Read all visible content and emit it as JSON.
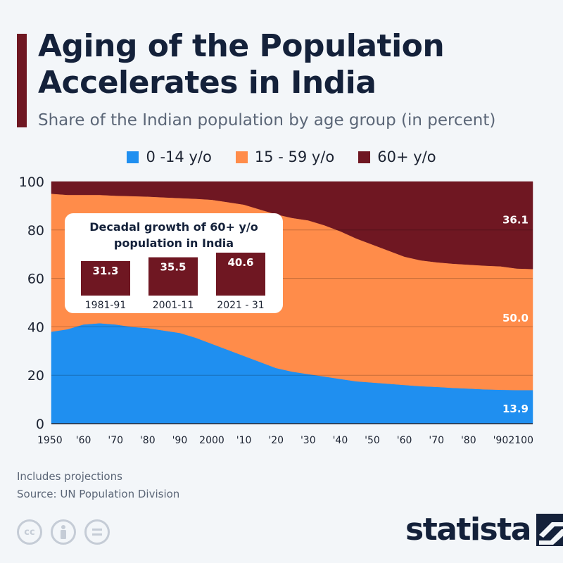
{
  "header": {
    "title": "Aging of the Population Accelerates in India",
    "subtitle": "Share of the Indian population by age group (in percent)"
  },
  "legend": [
    {
      "label": "0 -14 y/o",
      "color": "#1f8ff0"
    },
    {
      "label": "15 - 59 y/o",
      "color": "#ff8c4a"
    },
    {
      "label": "60+ y/o",
      "color": "#6f1722"
    }
  ],
  "chart_data": {
    "type": "area",
    "stacked": true,
    "x": [
      1950,
      1955,
      1960,
      1965,
      1970,
      1975,
      1980,
      1985,
      1990,
      1995,
      2000,
      2005,
      2010,
      2015,
      2020,
      2025,
      2030,
      2035,
      2040,
      2045,
      2050,
      2055,
      2060,
      2065,
      2070,
      2075,
      2080,
      2085,
      2090,
      2095,
      2100
    ],
    "x_tick_labels": [
      "1950",
      "'60",
      "'70",
      "'80",
      "'90",
      "2000",
      "'10",
      "'20",
      "'30",
      "'40",
      "'50",
      "'60",
      "'70",
      "'80",
      "'90",
      "2100"
    ],
    "y_ticks": [
      0,
      20,
      40,
      60,
      80,
      100
    ],
    "ylim": [
      0,
      100
    ],
    "grid": true,
    "series": [
      {
        "name": "0 -14 y/o",
        "color": "#1f8ff0",
        "values": [
          38,
          39,
          41,
          41.5,
          41,
          40,
          39.5,
          38.5,
          37.5,
          35.5,
          33,
          30.5,
          28,
          25.5,
          23,
          21.5,
          20.5,
          19.5,
          18.5,
          17.5,
          17,
          16.5,
          16,
          15.5,
          15.2,
          14.8,
          14.5,
          14.2,
          14,
          13.9,
          13.9
        ]
      },
      {
        "name": "15 - 59 y/o",
        "color": "#ff8c4a",
        "values": [
          57,
          55.5,
          53.5,
          53,
          53.2,
          54,
          54.3,
          55,
          55.7,
          57.4,
          59.5,
          61,
          62.5,
          63,
          63.5,
          63.5,
          63.5,
          62.5,
          61,
          59,
          57,
          55,
          53,
          52,
          51.5,
          51.3,
          51.2,
          51.1,
          51,
          50.2,
          50
        ]
      },
      {
        "name": "60+ y/o",
        "color": "#6f1722",
        "values": [
          5,
          5.5,
          5.5,
          5.5,
          5.8,
          6,
          6.2,
          6.5,
          6.8,
          7.1,
          7.5,
          8.5,
          9.5,
          11.5,
          13.5,
          15,
          16,
          18,
          20.5,
          23.5,
          26,
          28.5,
          31,
          32.5,
          33.3,
          33.9,
          34.3,
          34.7,
          35,
          35.9,
          36.1
        ]
      }
    ],
    "end_labels": [
      "13.9",
      "50.0",
      "36.1"
    ]
  },
  "inset": {
    "title_line1": "Decadal growth of 60+ y/o",
    "title_line2": "population in India",
    "bar_color": "#6f1722",
    "bars": [
      {
        "label": "1981-91",
        "value": 31.3,
        "value_text": "31.3"
      },
      {
        "label": "2001-11",
        "value": 35.5,
        "value_text": "35.5"
      },
      {
        "label": "2021 - 31",
        "value": 40.6,
        "value_text": "40.6"
      }
    ]
  },
  "footer": {
    "note": "Includes projections",
    "source": "Source: UN Population Division",
    "license_icons": [
      "cc-icon",
      "person-icon",
      "equals-icon"
    ],
    "brand": "statista"
  }
}
